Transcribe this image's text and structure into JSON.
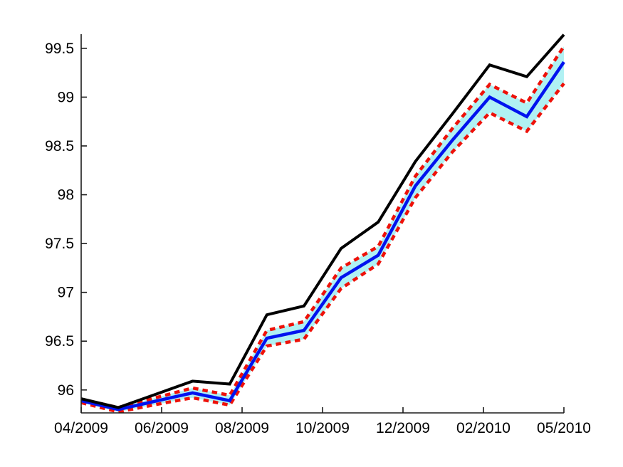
{
  "figure": {
    "background_color": "#ffffff",
    "plot_background_color": "#ffffff"
  },
  "chart_data": {
    "type": "line",
    "title": "",
    "xlabel": "",
    "ylabel": "",
    "grid": false,
    "legend": "none",
    "x_tick_labels": [
      "04/2009",
      "06/2009",
      "08/2009",
      "10/2009",
      "12/2009",
      "02/2010",
      "05/2010"
    ],
    "y_tick_labels": [
      "96",
      "96.5",
      "97",
      "97.5",
      "98",
      "98.5",
      "99",
      "99.5"
    ],
    "y_ticks": [
      96,
      96.5,
      97,
      97.5,
      98,
      98.5,
      99,
      99.5
    ],
    "ylim": [
      95.765,
      99.645
    ],
    "x_points_evenly_spaced": 14,
    "xlim_index": [
      0,
      13
    ],
    "series": [
      {
        "name": "black-solid-line",
        "color": "#000000",
        "style": "solid",
        "stroke_width": 4,
        "values": [
          95.91,
          95.82,
          95.955,
          96.09,
          96.06,
          96.77,
          96.86,
          97.45,
          97.72,
          98.34,
          98.83,
          99.33,
          99.21,
          99.64
        ]
      },
      {
        "name": "blue-center-line",
        "color": "#0013ef",
        "style": "solid",
        "stroke_width": 4.5,
        "values": [
          95.89,
          95.8,
          95.885,
          95.97,
          95.89,
          96.53,
          96.61,
          97.15,
          97.38,
          98.09,
          98.56,
          99.0,
          98.8,
          99.36
        ]
      },
      {
        "name": "red-dashed-upper-bound",
        "color": "#ee1109",
        "style": "dashed",
        "stroke_width": 4.5,
        "values": [
          95.905,
          95.82,
          95.92,
          96.02,
          95.945,
          96.61,
          96.7,
          97.25,
          97.47,
          98.19,
          98.68,
          99.13,
          98.94,
          99.52
        ]
      },
      {
        "name": "red-dashed-lower-bound",
        "color": "#ee1109",
        "style": "dashed",
        "stroke_width": 4.5,
        "values": [
          95.87,
          95.775,
          95.85,
          95.92,
          95.845,
          96.45,
          96.52,
          97.04,
          97.29,
          97.97,
          98.44,
          98.84,
          98.65,
          99.14
        ]
      }
    ],
    "band": {
      "between": [
        "red-dashed-upper-bound",
        "red-dashed-lower-bound"
      ],
      "fill_color": "#b0f1f3"
    },
    "axis_color": "#1a1a1a"
  }
}
